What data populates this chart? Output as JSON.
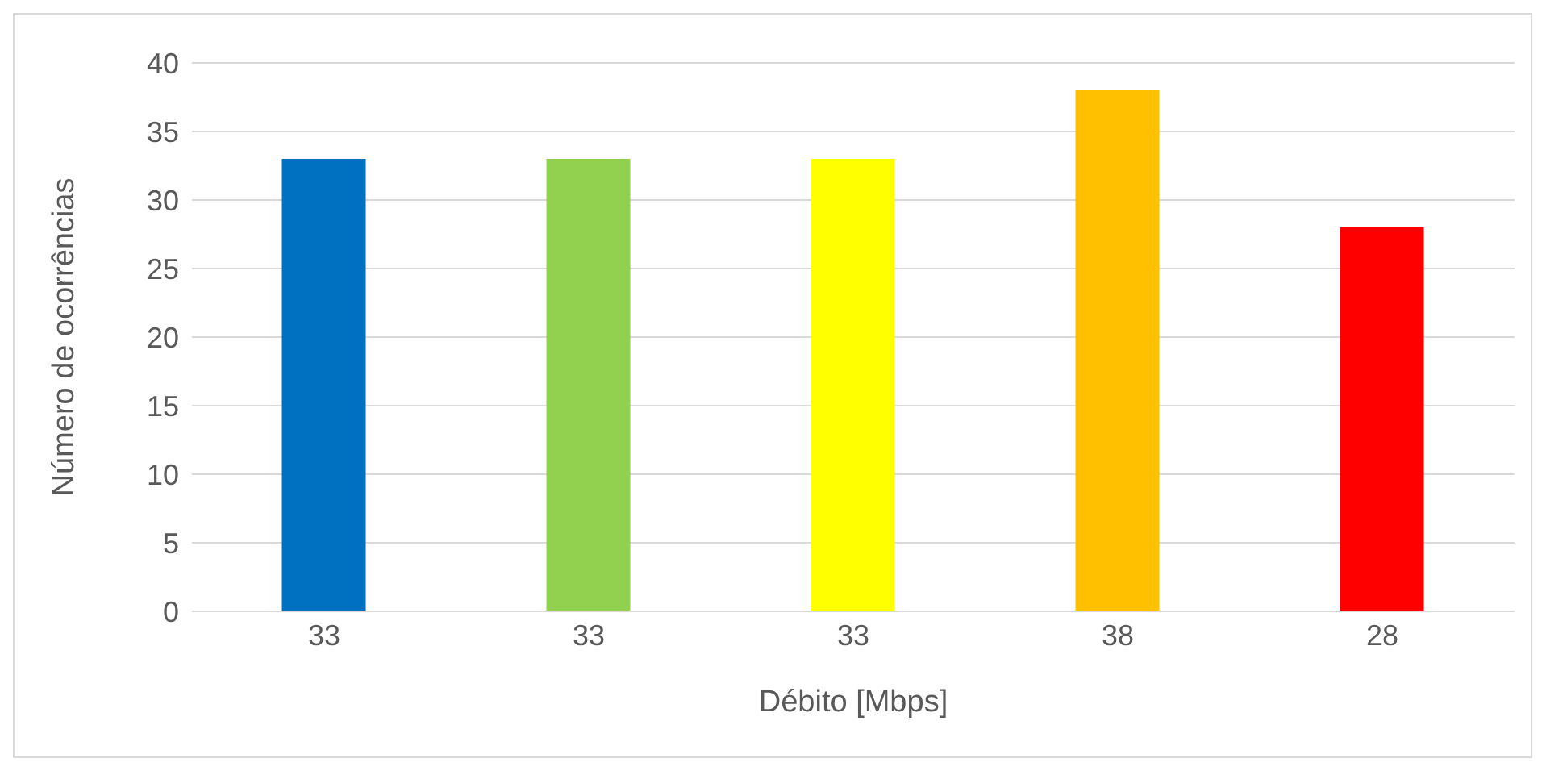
{
  "chart_data": {
    "type": "bar",
    "xlabel": "Débito [Mbps]",
    "ylabel": "Número de ocorrências",
    "categories": [
      "33",
      "33",
      "33",
      "38",
      "28"
    ],
    "values": [
      33,
      33,
      33,
      38,
      28
    ],
    "colors": [
      "#0070c0",
      "#92d050",
      "#ffff00",
      "#ffc000",
      "#ff0000"
    ],
    "ylim": [
      0,
      40
    ],
    "yticks": [
      0,
      5,
      10,
      15,
      20,
      25,
      30,
      35,
      40
    ],
    "grid": "y",
    "legend": false
  }
}
